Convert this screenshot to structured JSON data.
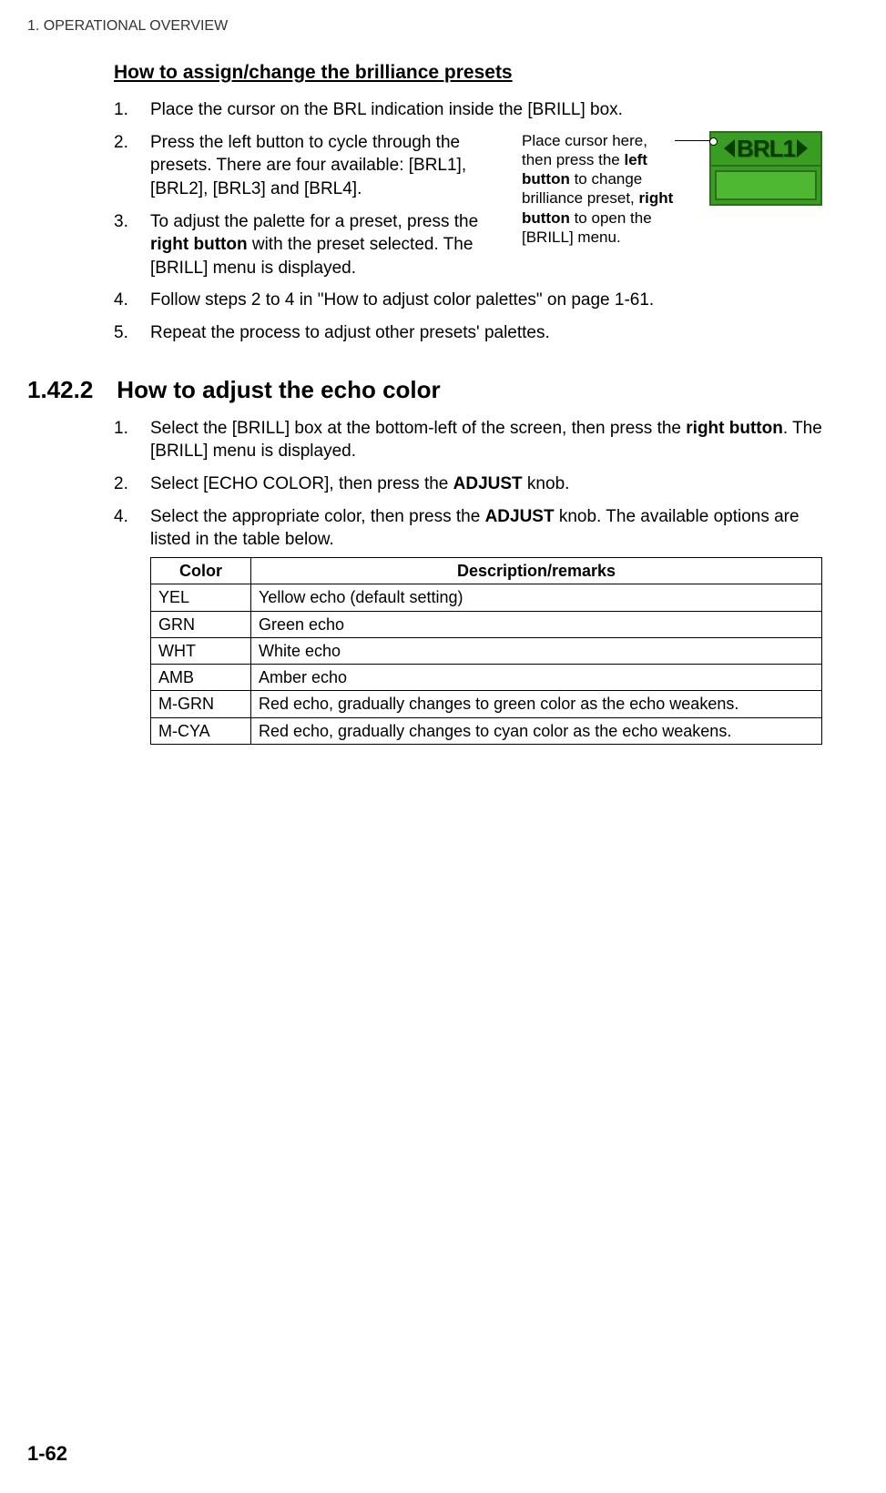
{
  "header": "1.  OPERATIONAL OVERVIEW",
  "presets": {
    "title": "How to assign/change the brilliance presets",
    "s1": "Place the cursor on the BRL indication inside the [BRILL] box.",
    "s2": "Press the left button to cycle through the presets. There are four available: [BRL1], [BRL2], [BRL3] and [BRL4].",
    "s3_a": "To adjust the palette for a preset, press the ",
    "s3_b": "right button",
    "s3_c": " with the preset selected. The [BRILL] menu is displayed.",
    "s4": "Follow steps 2 to 4 in \"How to adjust color palettes\" on page 1-61.",
    "s5": "Repeat the process to adjust other presets' palettes.",
    "callout_a": "Place cursor here, then press the ",
    "callout_b": "left button",
    "callout_c": " to change brilliance preset, ",
    "callout_d": "right button",
    "callout_e": " to open the [BRILL] menu.",
    "brl_label": "BRL1"
  },
  "echo": {
    "num": "1.42.2",
    "title": "How to adjust the echo color",
    "s1_a": "Select the [BRILL] box at the bottom-left of the screen, then press the ",
    "s1_b": "right button",
    "s1_c": ". The [BRILL] menu is displayed.",
    "s2_a": "Select [ECHO COLOR], then press the ",
    "s2_b": "ADJUST",
    "s2_c": " knob.",
    "s3_a": "Select the appropriate color, then press the ",
    "s3_b": "ADJUST",
    "s3_c": " knob. The available options are listed in the table below.",
    "table": {
      "h1": "Color",
      "h2": "Description/remarks",
      "rows": [
        {
          "c": "YEL",
          "d": "Yellow echo (default setting)"
        },
        {
          "c": "GRN",
          "d": "Green echo"
        },
        {
          "c": "WHT",
          "d": "White echo"
        },
        {
          "c": "AMB",
          "d": "Amber echo"
        },
        {
          "c": "M-GRN",
          "d": "Red echo, gradually changes to green color as the echo weakens."
        },
        {
          "c": "M-CYA",
          "d": "Red echo, gradually changes to cyan color as the echo weakens."
        }
      ]
    }
  },
  "page_num": "1-62"
}
